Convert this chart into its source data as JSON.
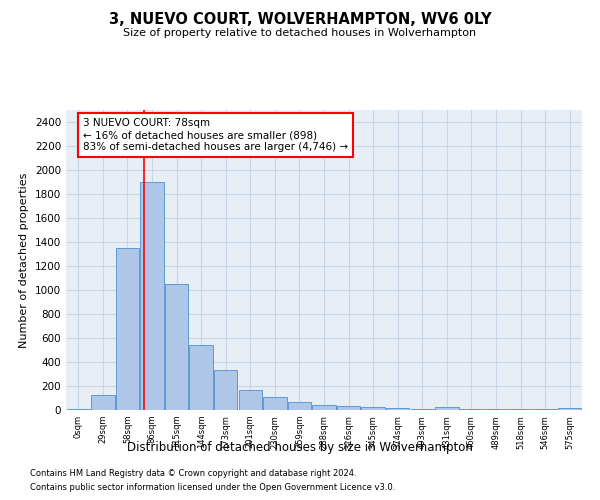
{
  "title": "3, NUEVO COURT, WOLVERHAMPTON, WV6 0LY",
  "subtitle": "Size of property relative to detached houses in Wolverhampton",
  "xlabel": "Distribution of detached houses by size in Wolverhampton",
  "ylabel": "Number of detached properties",
  "footer1": "Contains HM Land Registry data © Crown copyright and database right 2024.",
  "footer2": "Contains public sector information licensed under the Open Government Licence v3.0.",
  "bar_labels": [
    "0sqm",
    "29sqm",
    "58sqm",
    "86sqm",
    "115sqm",
    "144sqm",
    "173sqm",
    "201sqm",
    "230sqm",
    "259sqm",
    "288sqm",
    "316sqm",
    "345sqm",
    "374sqm",
    "403sqm",
    "431sqm",
    "460sqm",
    "489sqm",
    "518sqm",
    "546sqm",
    "575sqm"
  ],
  "bar_values": [
    10,
    125,
    1350,
    1900,
    1050,
    540,
    335,
    165,
    110,
    65,
    40,
    30,
    25,
    20,
    10,
    25,
    5,
    5,
    5,
    5,
    15
  ],
  "bar_color": "#aec6e8",
  "bar_edge_color": "#5b9bd5",
  "plot_bg_color": "#e8eef5",
  "fig_bg_color": "#ffffff",
  "grid_color": "#c8d4e8",
  "annotation_line1": "3 NUEVO COURT: 78sqm",
  "annotation_line2": "← 16% of detached houses are smaller (898)",
  "annotation_line3": "83% of semi-detached houses are larger (4,746) →",
  "red_line_x": 2.68,
  "ylim": [
    0,
    2500
  ],
  "yticks": [
    0,
    200,
    400,
    600,
    800,
    1000,
    1200,
    1400,
    1600,
    1800,
    2000,
    2200,
    2400
  ]
}
